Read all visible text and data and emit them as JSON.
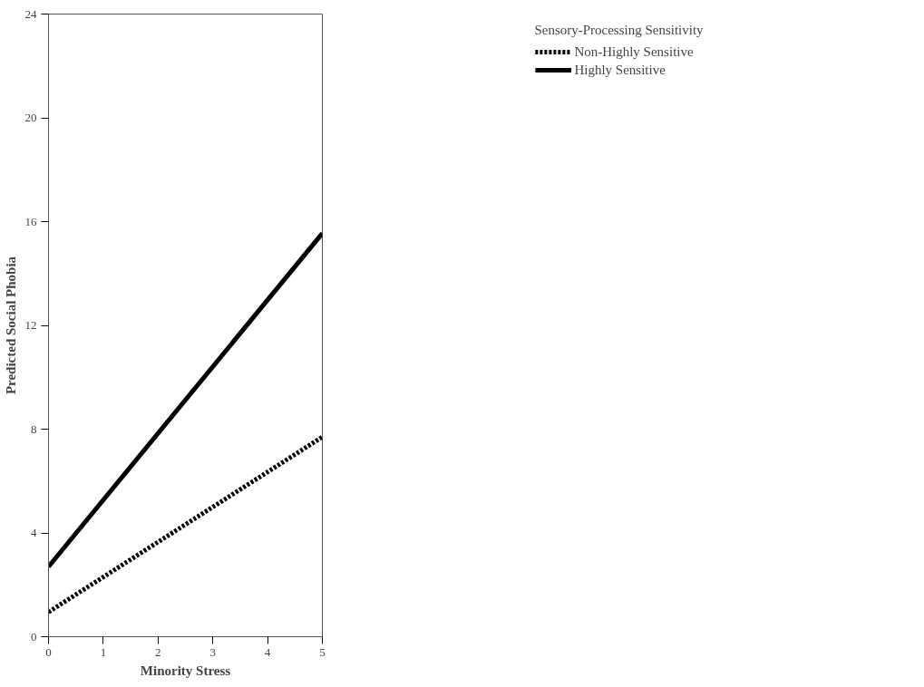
{
  "chart_data": {
    "type": "line",
    "xlabel": "Minority Stress",
    "ylabel": "Predicted Social Phobia",
    "legend_title": "Sensory-Processing Sensitivity",
    "x": [
      0,
      5
    ],
    "series": [
      {
        "name": "Non-Highly Sensitive",
        "color": "#000000",
        "line_style": "dotted",
        "values": [
          0.95,
          7.7
        ]
      },
      {
        "name": "Highly Sensitive",
        "color": "#000000",
        "line_style": "solid",
        "values": [
          2.7,
          15.55
        ]
      }
    ],
    "xlim": [
      0,
      5
    ],
    "ylim": [
      0,
      24
    ],
    "xticks": [
      0,
      1,
      2,
      3,
      4,
      5
    ],
    "yticks": [
      0,
      4,
      8,
      12,
      16,
      20,
      24
    ],
    "grid": false,
    "legend": "right",
    "marker": "none"
  }
}
